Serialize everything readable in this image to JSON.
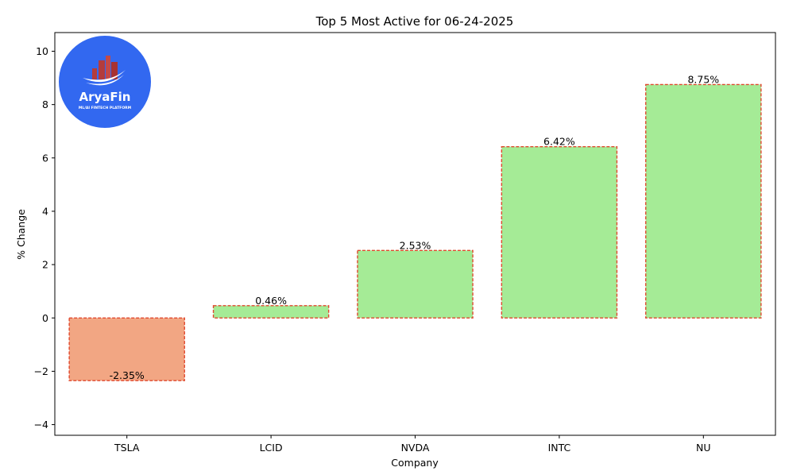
{
  "chart_data": {
    "type": "bar",
    "title": "Top 5 Most Active for 06-24-2025",
    "xlabel": "Company",
    "ylabel": "% Change",
    "categories": [
      "TSLA",
      "LCID",
      "NVDA",
      "INTC",
      "NU"
    ],
    "values": [
      -2.35,
      0.46,
      2.53,
      6.42,
      8.75
    ],
    "data_labels": [
      "-2.35%",
      "0.46%",
      "2.53%",
      "6.42%",
      "8.75%"
    ],
    "ylim": [
      -4.4,
      10.7
    ],
    "yticks": [
      -4,
      -2,
      0,
      2,
      4,
      6,
      8,
      10
    ],
    "ytick_labels": [
      "−4",
      "−2",
      "0",
      "2",
      "4",
      "6",
      "8",
      "10"
    ],
    "grid": false,
    "colors": {
      "positive": "#a5eb96",
      "negative": "#f2a683",
      "bar_edge": "#e0492f"
    }
  },
  "logo": {
    "name": "AryaFin",
    "tagline": "ML/AI FINTECH PLATFORM",
    "background": "#3268f0"
  }
}
